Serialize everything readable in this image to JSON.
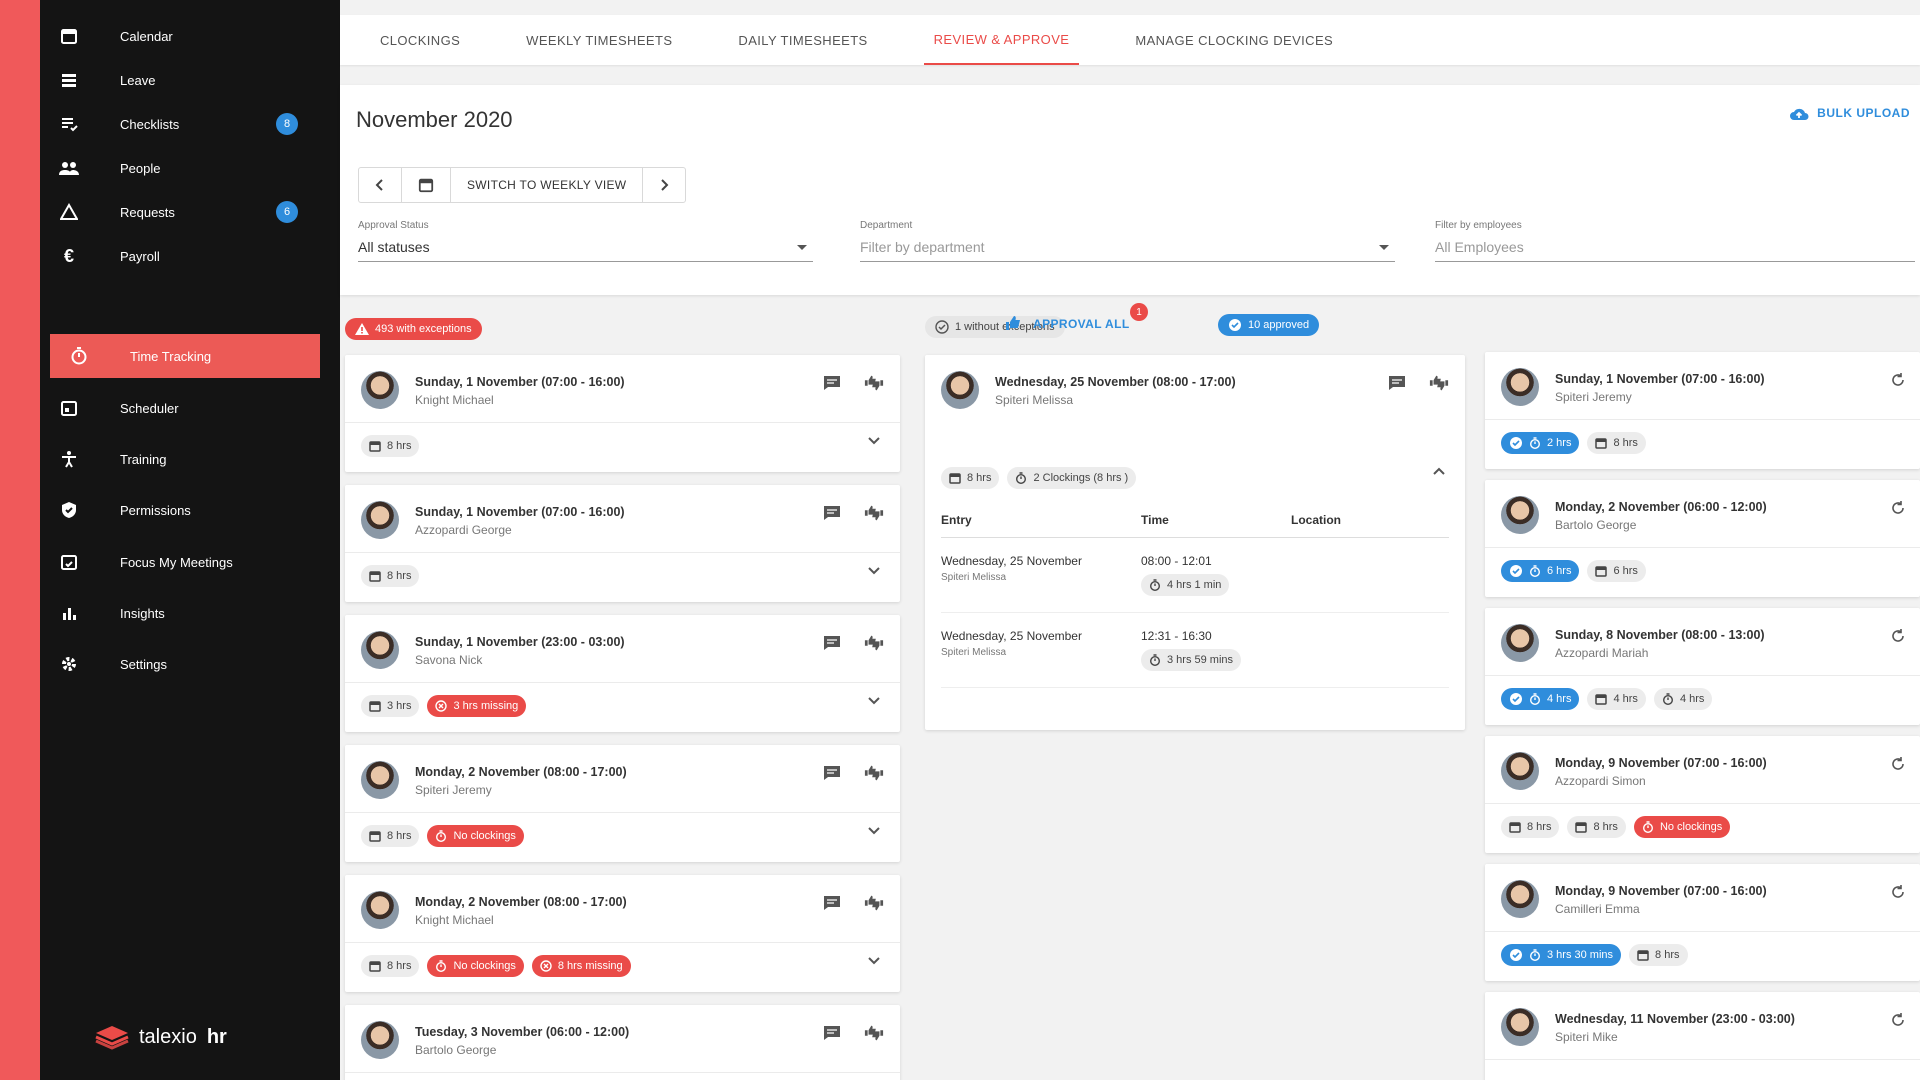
{
  "sidebar": {
    "items": [
      {
        "label": "Calendar",
        "icon": "calendar-icon"
      },
      {
        "label": "Leave",
        "icon": "leave-icon"
      },
      {
        "label": "Checklists",
        "icon": "checklist-icon",
        "badge": "8"
      },
      {
        "label": "People",
        "icon": "people-icon"
      },
      {
        "label": "Requests",
        "icon": "requests-icon",
        "badge": "6"
      },
      {
        "label": "Payroll",
        "icon": "euro-icon"
      },
      {
        "label": "Time Tracking",
        "icon": "stopwatch-icon",
        "active": true
      },
      {
        "label": "Scheduler",
        "icon": "scheduler-icon"
      },
      {
        "label": "Training",
        "icon": "training-icon"
      },
      {
        "label": "Permissions",
        "icon": "shield-icon"
      },
      {
        "label": "Focus My Meetings",
        "icon": "meetings-icon"
      },
      {
        "label": "Insights",
        "icon": "insights-icon"
      },
      {
        "label": "Settings",
        "icon": "gear-icon"
      }
    ],
    "brand": {
      "name": "talexio",
      "suffix": "hr"
    }
  },
  "tabs": [
    "CLOCKINGS",
    "WEEKLY TIMESHEETS",
    "DAILY TIMESHEETS",
    "REVIEW & APPROVE",
    "MANAGE CLOCKING DEVICES"
  ],
  "active_tab": "REVIEW & APPROVE",
  "header": {
    "month": "November 2020",
    "bulk_upload": "BULK UPLOAD",
    "switch_view": "SWITCH TO WEEKLY VIEW"
  },
  "filters": {
    "approval_status": {
      "label": "Approval Status",
      "value": "All statuses"
    },
    "department": {
      "label": "Department",
      "placeholder": "Filter by department"
    },
    "employees": {
      "label": "Filter by employees",
      "placeholder": "All Employees"
    }
  },
  "columns": {
    "exceptions": "493 with exceptions",
    "without": "1 without exceptions",
    "approve_all": "APPROVAL ALL",
    "approve_badge": "1",
    "approved": "10 approved"
  },
  "exceptions_cards": [
    {
      "title": "Sunday, 1 November (07:00 - 16:00)",
      "name": "Knight Michael",
      "pills": [
        {
          "t": "8 hrs",
          "c": "grey"
        }
      ]
    },
    {
      "title": "Sunday, 1 November (07:00 - 16:00)",
      "name": "Azzopardi George",
      "pills": [
        {
          "t": "8 hrs",
          "c": "grey"
        }
      ]
    },
    {
      "title": "Sunday, 1 November (23:00 - 03:00)",
      "name": "Savona Nick",
      "pills": [
        {
          "t": "3 hrs",
          "c": "grey"
        },
        {
          "t": "3 hrs missing",
          "c": "red"
        }
      ]
    },
    {
      "title": "Monday, 2 November (08:00 - 17:00)",
      "name": "Spiteri Jeremy",
      "pills": [
        {
          "t": "8 hrs",
          "c": "grey"
        },
        {
          "t": "No clockings",
          "c": "red"
        }
      ]
    },
    {
      "title": "Monday, 2 November (08:00 - 17:00)",
      "name": "Knight Michael",
      "pills": [
        {
          "t": "8 hrs",
          "c": "grey"
        },
        {
          "t": "No clockings",
          "c": "red"
        },
        {
          "t": "8 hrs missing",
          "c": "red"
        }
      ]
    },
    {
      "title": "Tuesday, 3 November (06:00 - 12:00)",
      "name": "Bartolo George",
      "pills": []
    }
  ],
  "middle_card": {
    "title": "Wednesday, 25 November (08:00 - 17:00)",
    "name": "Spiteri Melissa",
    "hours": "8 hrs",
    "clockings": "2 Clockings (8 hrs )",
    "table_headers": [
      "Entry",
      "Time",
      "Location"
    ],
    "rows": [
      {
        "entry": "Wednesday, 25 November",
        "sub": "Spiteri Melissa",
        "time": "08:00 - 12:01",
        "dur": "4 hrs 1 min"
      },
      {
        "entry": "Wednesday, 25 November",
        "sub": "Spiteri Melissa",
        "time": "12:31 - 16:30",
        "dur": "3 hrs 59 mins"
      }
    ]
  },
  "approved_cards": [
    {
      "title": "Sunday, 1 November (07:00 - 16:00)",
      "name": "Spiteri Jeremy",
      "pills": [
        {
          "t": "2 hrs",
          "c": "blue"
        },
        {
          "t": "8 hrs",
          "c": "grey"
        }
      ]
    },
    {
      "title": "Monday, 2 November (06:00 - 12:00)",
      "name": "Bartolo George",
      "pills": [
        {
          "t": "6 hrs",
          "c": "blue"
        },
        {
          "t": "6 hrs",
          "c": "grey"
        }
      ]
    },
    {
      "title": "Sunday, 8 November (08:00 - 13:00)",
      "name": "Azzopardi Mariah",
      "pills": [
        {
          "t": "4 hrs",
          "c": "blue"
        },
        {
          "t": "4 hrs",
          "c": "grey"
        },
        {
          "t": "4 hrs",
          "c": "grey"
        }
      ]
    },
    {
      "title": "Monday, 9 November (07:00 - 16:00)",
      "name": "Azzopardi Simon",
      "pills": [
        {
          "t": "8 hrs",
          "c": "grey"
        },
        {
          "t": "8 hrs",
          "c": "grey"
        },
        {
          "t": "No clockings",
          "c": "red"
        }
      ]
    },
    {
      "title": "Monday, 9 November (07:00 - 16:00)",
      "name": "Camilleri Emma",
      "pills": [
        {
          "t": "3 hrs 30 mins",
          "c": "blue"
        },
        {
          "t": "8 hrs",
          "c": "grey"
        }
      ]
    },
    {
      "title": "Wednesday, 11 November (23:00 - 03:00)",
      "name": "Spiteri Mike",
      "pills": []
    }
  ],
  "colors": {
    "accent": "#ea4b48",
    "blue": "#2f8ddc",
    "sidebar": "#141414"
  }
}
